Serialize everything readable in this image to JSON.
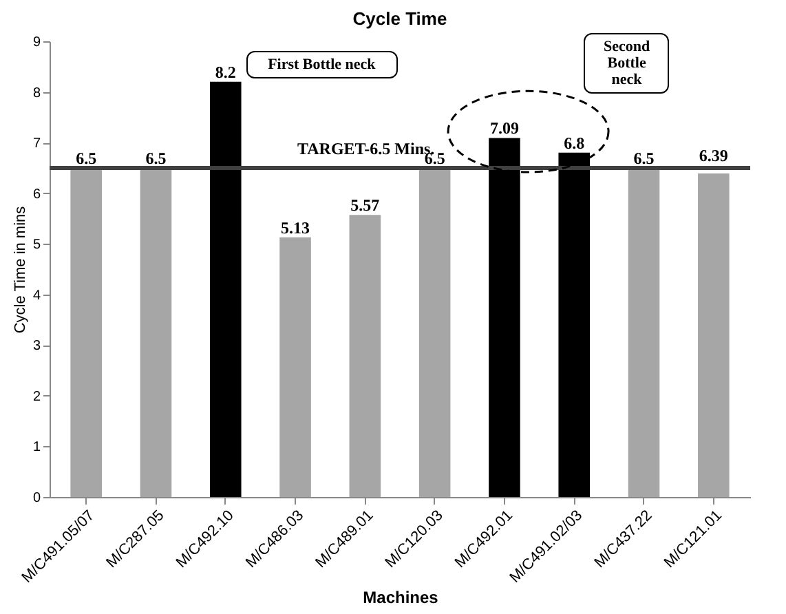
{
  "chart_data": {
    "type": "bar",
    "title": "Cycle Time",
    "xlabel": "Machines",
    "ylabel": "Cycle Time in mins",
    "categories": [
      "M/C491.05/07",
      "M/C287.05",
      "M/C492.10",
      "M/C486.03",
      "M/C489.01",
      "M/C120.03",
      "M/C492.01",
      "M/C491.02/03",
      "M/C437.22",
      "M/C121.01"
    ],
    "values": [
      6.5,
      6.5,
      8.2,
      5.13,
      5.57,
      6.5,
      7.09,
      6.8,
      6.5,
      6.39
    ],
    "colors": [
      "#a6a6a6",
      "#a6a6a6",
      "#000000",
      "#a6a6a6",
      "#a6a6a6",
      "#a6a6a6",
      "#000000",
      "#000000",
      "#a6a6a6",
      "#a6a6a6"
    ],
    "ylim": [
      0,
      9
    ],
    "yticks": [
      0,
      1,
      2,
      3,
      4,
      5,
      6,
      7,
      8,
      9
    ],
    "grid": false,
    "data_labels": true,
    "ref_lines": [
      {
        "axis": "y",
        "value": 6.5,
        "label": "TARGET-6.5 Mins.",
        "color": "#404040"
      }
    ],
    "annotations": [
      {
        "text": "First Bottle neck",
        "x": "M/C492.10",
        "y": 8.2
      },
      "Second Bottle neck"
    ]
  }
}
